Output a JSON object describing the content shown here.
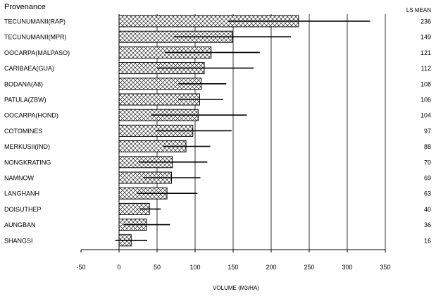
{
  "chart_data": {
    "type": "bar",
    "orientation": "horizontal",
    "category_header": "Provenance",
    "value_header": "LS MEAN",
    "xlabel": "VOLUME (M3/HA)",
    "xlim": [
      -50,
      350
    ],
    "x_ticks": [
      -50,
      0,
      50,
      100,
      150,
      200,
      250,
      300,
      350
    ],
    "grid": "vertical",
    "bar_fill": "crosshatch",
    "error_bars": true,
    "categories": [
      "TECUNUMANII(RAP)",
      "TECUNUMANII(MPR)",
      "OOCARPA(MALPASO)",
      "CARIBAEA(GUA)",
      "BODANA(A8)",
      "PATULA(ZBW)",
      "OOCARPA(HOND)",
      "COTOMINES",
      "MERKUSII(IND)",
      "NONGKRATING",
      "NAMNOW",
      "LANGHANH",
      "DOISUTHEP",
      "AUNGBAN",
      "SHANGSI"
    ],
    "values": [
      236,
      149,
      121,
      112,
      108,
      106,
      104,
      97,
      88,
      70,
      69,
      63,
      40,
      36,
      16
    ],
    "value_labels": [
      "236",
      "149",
      "121",
      "112",
      "108",
      "106",
      "104",
      "97",
      "88",
      "70",
      "69",
      "63",
      "40",
      "36",
      "16"
    ],
    "error_low": [
      143,
      72,
      60,
      50,
      78,
      78,
      42,
      48,
      58,
      26,
      32,
      24,
      27,
      6,
      -5
    ],
    "error_high": [
      330,
      226,
      185,
      177,
      141,
      137,
      168,
      148,
      120,
      116,
      107,
      103,
      55,
      67,
      37
    ]
  }
}
